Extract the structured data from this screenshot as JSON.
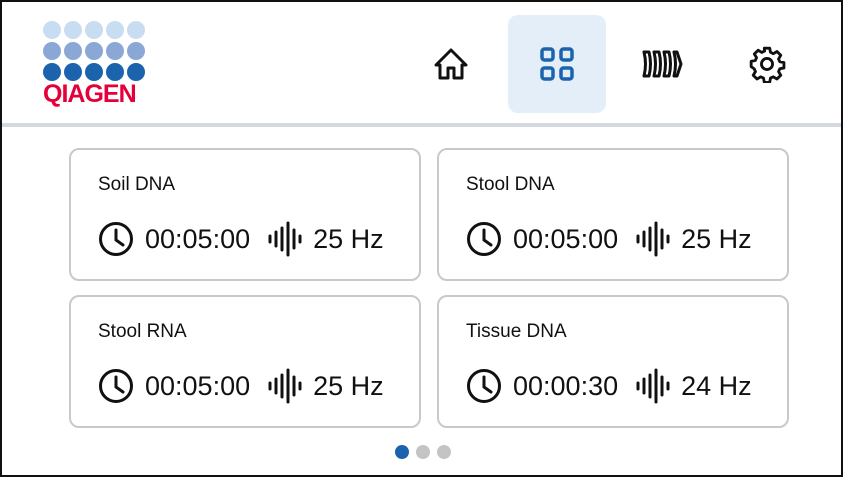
{
  "brand": {
    "name": "QIAGEN",
    "colors": {
      "light": "#c8ddf2",
      "mid": "#8aa7d6",
      "dark": "#1b63ad",
      "text": "#e4003a"
    }
  },
  "nav": [
    {
      "id": "home",
      "icon": "home-icon",
      "active": false
    },
    {
      "id": "programs",
      "icon": "grid-icon",
      "active": true
    },
    {
      "id": "adapters",
      "icon": "plates-icon",
      "active": false
    },
    {
      "id": "settings",
      "icon": "gear-icon",
      "active": false
    }
  ],
  "programs": [
    {
      "name": "Soil DNA",
      "time": "00:05:00",
      "frequency": "25 Hz"
    },
    {
      "name": "Stool DNA",
      "time": "00:05:00",
      "frequency": "25 Hz"
    },
    {
      "name": "Stool RNA",
      "time": "00:05:00",
      "frequency": "25 Hz"
    },
    {
      "name": "Tissue DNA",
      "time": "00:00:30",
      "frequency": "24 Hz"
    }
  ],
  "pagination": {
    "current": 1,
    "total": 3,
    "active_color": "#1b63ad"
  }
}
